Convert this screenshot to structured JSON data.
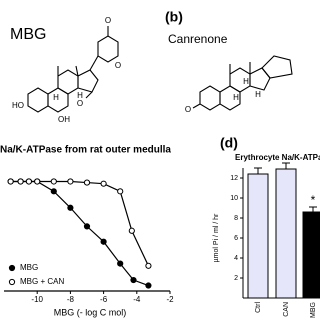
{
  "labels": {
    "mbg": "MBG",
    "panel_b": "(b)",
    "canrenone": "Canrenone"
  },
  "structures": {
    "mbg_atoms": [
      "O",
      "O",
      "HO",
      "OH",
      "H",
      "H",
      "O"
    ],
    "canrenone_atoms": [
      "O",
      "H",
      "H",
      "H"
    ]
  },
  "chart_data": [
    {
      "type": "line",
      "title": "Na/K-ATPase from rat outer medulla",
      "xlabel": "MBG (- log C mol)",
      "xlim": [
        -12,
        -2
      ],
      "xticks": [
        -10,
        -8,
        -6,
        -4,
        -2
      ],
      "ylim": [
        0,
        105
      ],
      "series": [
        {
          "name": "MBG",
          "color": "#000000",
          "marker": "filled",
          "x": [
            -11.6,
            -11,
            -10.5,
            -10,
            -9,
            -8,
            -7,
            -6,
            -5,
            -4.2,
            -3.3
          ],
          "values": [
            100,
            100,
            100,
            100,
            91,
            76,
            59,
            45,
            25,
            10,
            5
          ]
        },
        {
          "name": "MBG + CAN",
          "color": "#000000",
          "marker": "open",
          "x": [
            -11.6,
            -11,
            -10.5,
            -10,
            -9,
            -8,
            -7,
            -6,
            -5,
            -4.3,
            -3.3
          ],
          "values": [
            100,
            100,
            100,
            100,
            100,
            100,
            99,
            98,
            91,
            55,
            23
          ]
        }
      ]
    },
    {
      "type": "bar",
      "panel": "(d)",
      "title": "Erythrocyte Na/K-ATPase",
      "ylabel": "µmol Pi / ml / hr",
      "categories": [
        "Ctrl",
        "CAN",
        "MBG"
      ],
      "values": [
        12.4,
        12.9,
        8.6
      ],
      "errors": [
        0.6,
        0.6,
        0.5
      ],
      "colors": [
        "#e6e6fa",
        "#e6e6fa",
        "#000000"
      ],
      "ylim": [
        0,
        13
      ],
      "yticks": [
        2,
        4,
        6,
        8,
        10,
        12
      ],
      "annotation": {
        "text": "*",
        "category": "MBG"
      }
    }
  ]
}
